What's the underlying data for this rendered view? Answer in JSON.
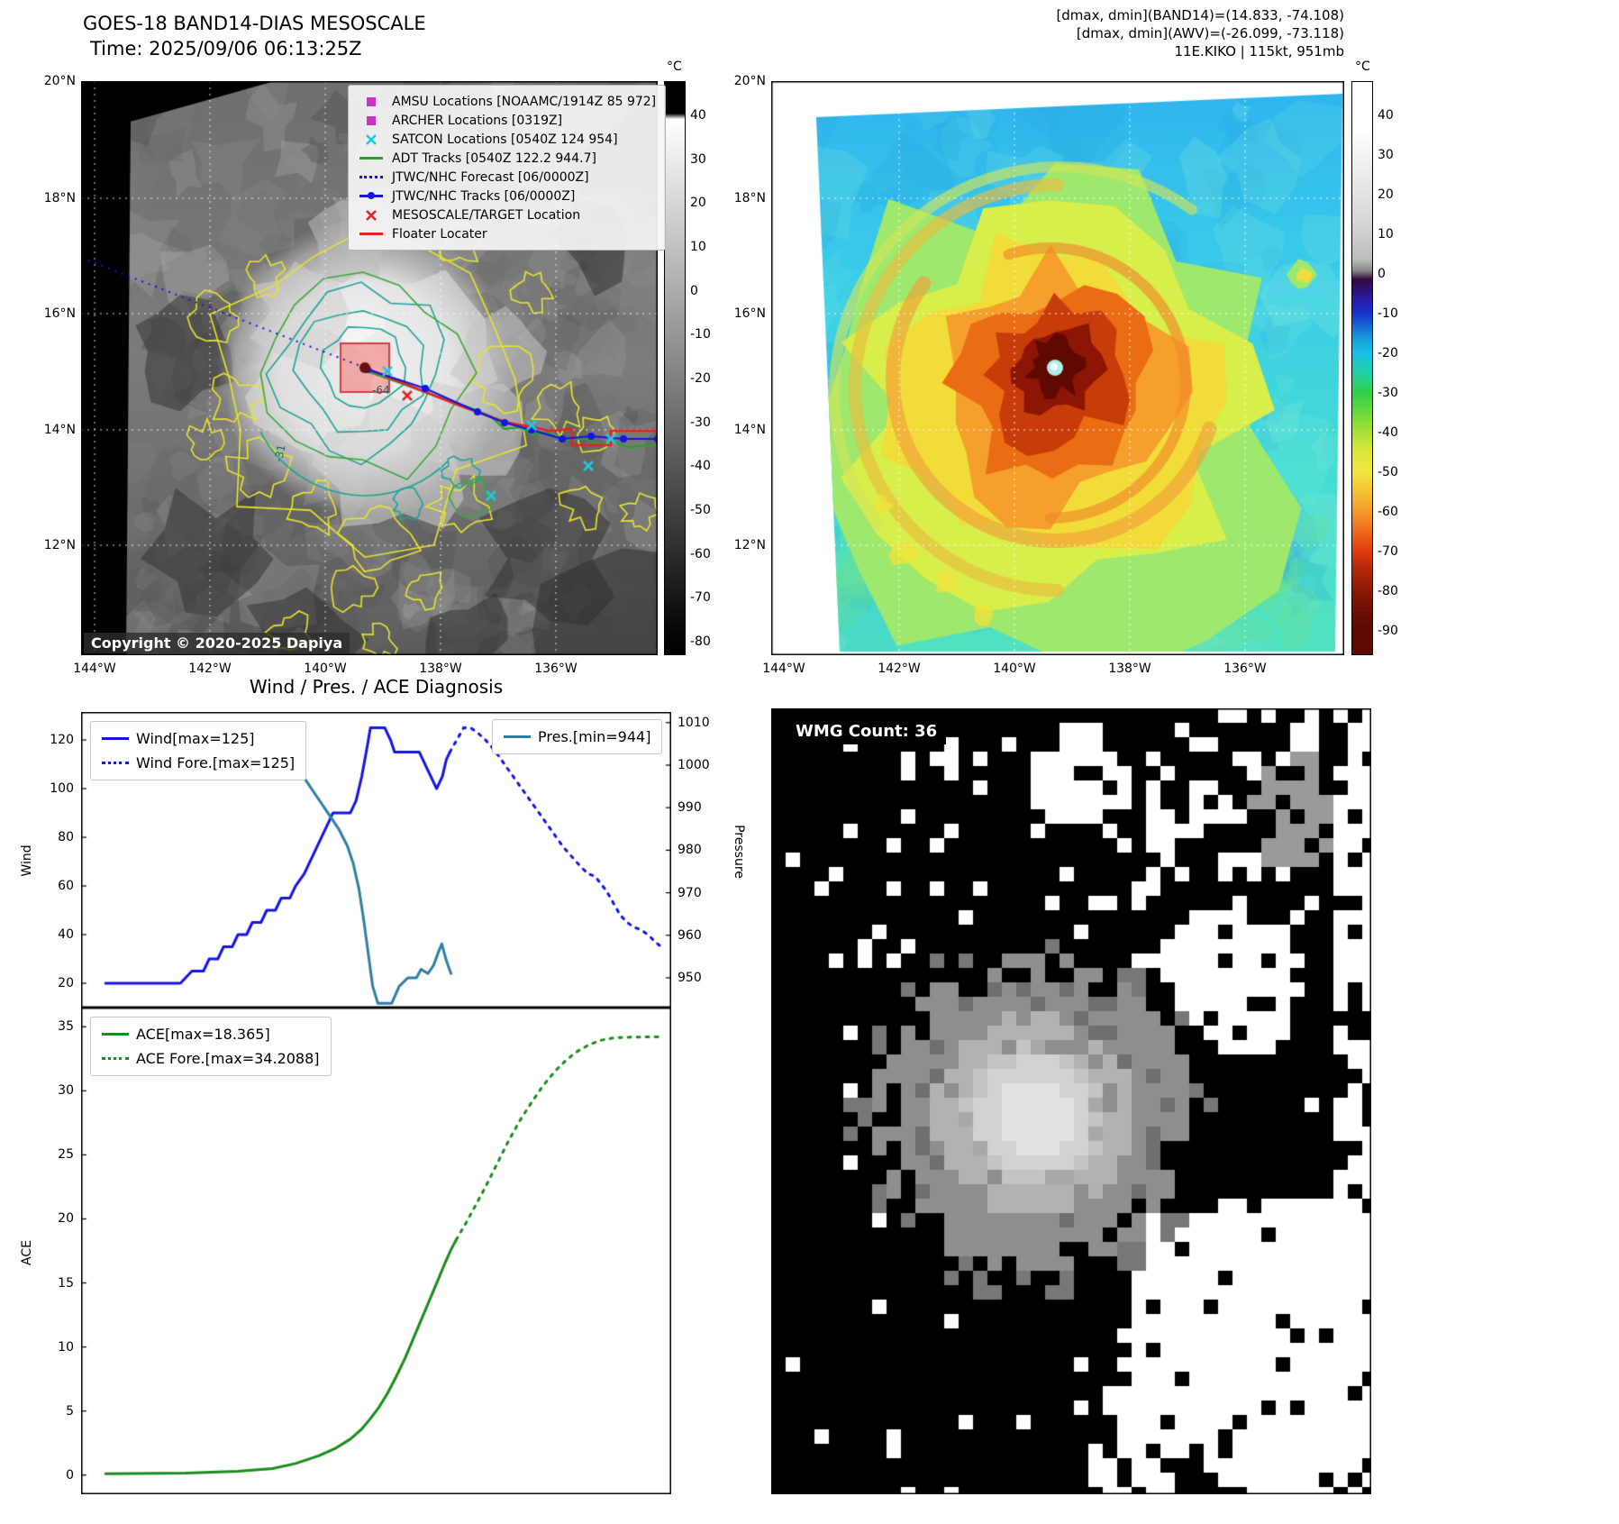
{
  "band14": {
    "title": "GOES-18 BAND14-DIAS MESOSCALE",
    "time": " Time: 2025/09/06 06:13:25Z",
    "copyright": "Copyright © 2020-2025 Dapiya",
    "colorbar_unit": "°C",
    "colorbar_ticks": [
      "40",
      "30",
      "20",
      "10",
      "0",
      "-10",
      "-20",
      "-30",
      "-40",
      "-50",
      "-60",
      "-70",
      "-80"
    ],
    "lat_ticks": [
      "20°N",
      "18°N",
      "16°N",
      "14°N",
      "12°N"
    ],
    "lon_ticks": [
      "144°W",
      "142°W",
      "140°W",
      "138°W",
      "136°W"
    ],
    "contour_labels": {
      "inner": "-64",
      "outer": "-31"
    },
    "legend": [
      {
        "label": "AMSU Locations [NOAAMC/1914Z 85 972]",
        "marker": "square",
        "color": "#c832c8"
      },
      {
        "label": "ARCHER Locations [0319Z]",
        "marker": "square",
        "color": "#c832c8"
      },
      {
        "label": "SATCON Locations [0540Z 124 954]",
        "marker": "x",
        "color": "#1ecbe1"
      },
      {
        "label": "ADT Tracks [0540Z 122.2 944.7]",
        "marker": "line",
        "color": "#2ca02c"
      },
      {
        "label": "JTWC/NHC Forecast [06/0000Z]",
        "marker": "dotted",
        "color": "#1414e6"
      },
      {
        "label": "JTWC/NHC Tracks [06/0000Z]",
        "marker": "line-dot",
        "color": "#1414e6"
      },
      {
        "label": "MESOSCALE/TARGET Location",
        "marker": "x",
        "color": "#e62222"
      },
      {
        "label": "Floater Locater",
        "marker": "line",
        "color": "#e62222"
      }
    ]
  },
  "awv": {
    "header": [
      "[dmax, dmin](BAND14)=(14.833, -74.108)",
      "[dmax, dmin](AWV)=(-26.099, -73.118)",
      "11E.KIKO | 115kt, 951mb"
    ],
    "colorbar_unit": "°C",
    "colorbar_ticks": [
      "40",
      "30",
      "20",
      "10",
      "0",
      "-10",
      "-20",
      "-30",
      "-40",
      "-50",
      "-60",
      "-70",
      "-80",
      "-90"
    ],
    "lat_ticks": [
      "20°N",
      "18°N",
      "16°N",
      "14°N",
      "12°N"
    ],
    "lon_ticks": [
      "144°W",
      "142°W",
      "140°W",
      "138°W",
      "136°W"
    ]
  },
  "diagnosis": {
    "title": "Wind / Pres. / ACE Diagnosis"
  },
  "wmg": {
    "label": "WMG Count: 36"
  },
  "chart_data": [
    {
      "type": "line",
      "title": "Wind / Pres. / ACE Diagnosis (upper panel)",
      "xlabel": "",
      "ylabel": "Wind",
      "y2label": "Pressure",
      "ylim": [
        10,
        131.5
      ],
      "y2lim": [
        943,
        1012.5
      ],
      "yticks": [
        20,
        40,
        60,
        80,
        100,
        120
      ],
      "y2ticks": [
        950,
        960,
        970,
        980,
        990,
        1000,
        1010
      ],
      "legend_position": "upper left / upper right",
      "grid": false,
      "series": [
        {
          "name": "Wind[max=125]",
          "style": "solid",
          "color": "#1414e6",
          "axis": "left",
          "points": [
            [
              0.03,
              20
            ],
            [
              0.16,
              20
            ],
            [
              0.18,
              25
            ],
            [
              0.2,
              25
            ],
            [
              0.21,
              30
            ],
            [
              0.225,
              30
            ],
            [
              0.235,
              35
            ],
            [
              0.25,
              35
            ],
            [
              0.26,
              40
            ],
            [
              0.275,
              40
            ],
            [
              0.285,
              45
            ],
            [
              0.3,
              45
            ],
            [
              0.31,
              50
            ],
            [
              0.325,
              50
            ],
            [
              0.335,
              55
            ],
            [
              0.35,
              55
            ],
            [
              0.36,
              60
            ],
            [
              0.375,
              65
            ],
            [
              0.385,
              70
            ],
            [
              0.395,
              75
            ],
            [
              0.405,
              80
            ],
            [
              0.415,
              85
            ],
            [
              0.425,
              90
            ],
            [
              0.455,
              90
            ],
            [
              0.465,
              95
            ],
            [
              0.475,
              105
            ],
            [
              0.485,
              118
            ],
            [
              0.49,
              125
            ],
            [
              0.515,
              125
            ],
            [
              0.525,
              120
            ],
            [
              0.532,
              115
            ],
            [
              0.575,
              115
            ],
            [
              0.585,
              110
            ],
            [
              0.595,
              105
            ],
            [
              0.605,
              100
            ],
            [
              0.615,
              105
            ],
            [
              0.622,
              112
            ],
            [
              0.628,
              115
            ]
          ]
        },
        {
          "name": "Wind Fore.[max=125]",
          "style": "dotted",
          "color": "#1414e6",
          "axis": "left",
          "points": [
            [
              0.628,
              115
            ],
            [
              0.64,
              120
            ],
            [
              0.652,
              125
            ],
            [
              0.664,
              125
            ],
            [
              0.676,
              123
            ],
            [
              0.69,
              120
            ],
            [
              0.705,
              116
            ],
            [
              0.72,
              111
            ],
            [
              0.735,
              106
            ],
            [
              0.75,
              101
            ],
            [
              0.765,
              96
            ],
            [
              0.78,
              91
            ],
            [
              0.795,
              86
            ],
            [
              0.81,
              81
            ],
            [
              0.825,
              76
            ],
            [
              0.84,
              72
            ],
            [
              0.855,
              68
            ],
            [
              0.868,
              65
            ],
            [
              0.88,
              64
            ],
            [
              0.89,
              61
            ],
            [
              0.9,
              58
            ],
            [
              0.912,
              53
            ],
            [
              0.924,
              48
            ],
            [
              0.936,
              45
            ],
            [
              0.948,
              43
            ],
            [
              0.96,
              42
            ],
            [
              0.972,
              40
            ],
            [
              0.985,
              37
            ],
            [
              0.995,
              35
            ]
          ]
        },
        {
          "name": "Pres.[min=944]",
          "style": "solid",
          "color": "#2e7f9e",
          "axis": "right",
          "points": [
            [
              0.05,
              1009
            ],
            [
              0.13,
              1008
            ],
            [
              0.21,
              1007
            ],
            [
              0.28,
              1005
            ],
            [
              0.32,
              1003
            ],
            [
              0.35,
              1000
            ],
            [
              0.375,
              997
            ],
            [
              0.395,
              993
            ],
            [
              0.415,
              989
            ],
            [
              0.435,
              985
            ],
            [
              0.45,
              981
            ],
            [
              0.46,
              977
            ],
            [
              0.47,
              971
            ],
            [
              0.478,
              964
            ],
            [
              0.486,
              956
            ],
            [
              0.494,
              948
            ],
            [
              0.503,
              944
            ],
            [
              0.527,
              944
            ],
            [
              0.54,
              948
            ],
            [
              0.555,
              950
            ],
            [
              0.57,
              950
            ],
            [
              0.578,
              952
            ],
            [
              0.59,
              951
            ],
            [
              0.6,
              953
            ],
            [
              0.608,
              956
            ],
            [
              0.614,
              958
            ],
            [
              0.622,
              954
            ],
            [
              0.63,
              951
            ]
          ]
        }
      ]
    },
    {
      "type": "line",
      "title": "ACE diagnosis (lower panel)",
      "xlabel": "",
      "ylabel": "ACE",
      "ylim": [
        -1.5,
        36.5
      ],
      "yticks": [
        0,
        5,
        10,
        15,
        20,
        25,
        30,
        35
      ],
      "legend_position": "upper left",
      "grid": false,
      "series": [
        {
          "name": "ACE[max=18.365]",
          "style": "solid",
          "color": "#1a8c1a",
          "axis": "left",
          "points": [
            [
              0.03,
              0.1
            ],
            [
              0.17,
              0.15
            ],
            [
              0.26,
              0.3
            ],
            [
              0.32,
              0.5
            ],
            [
              0.36,
              0.9
            ],
            [
              0.4,
              1.5
            ],
            [
              0.43,
              2.1
            ],
            [
              0.455,
              2.8
            ],
            [
              0.475,
              3.6
            ],
            [
              0.49,
              4.4
            ],
            [
              0.505,
              5.3
            ],
            [
              0.52,
              6.4
            ],
            [
              0.535,
              7.7
            ],
            [
              0.55,
              9.1
            ],
            [
              0.565,
              10.7
            ],
            [
              0.58,
              12.3
            ],
            [
              0.595,
              13.9
            ],
            [
              0.61,
              15.5
            ],
            [
              0.62,
              16.6
            ],
            [
              0.63,
              17.6
            ],
            [
              0.639,
              18.365
            ]
          ]
        },
        {
          "name": "ACE Fore.[max=34.2088]",
          "style": "dotted",
          "color": "#1a8c1a",
          "axis": "left",
          "points": [
            [
              0.639,
              18.365
            ],
            [
              0.655,
              19.6
            ],
            [
              0.672,
              21.0
            ],
            [
              0.69,
              22.5
            ],
            [
              0.71,
              24.3
            ],
            [
              0.73,
              26.1
            ],
            [
              0.75,
              27.7
            ],
            [
              0.77,
              29.1
            ],
            [
              0.79,
              30.4
            ],
            [
              0.81,
              31.5
            ],
            [
              0.83,
              32.4
            ],
            [
              0.85,
              33.1
            ],
            [
              0.87,
              33.6
            ],
            [
              0.89,
              33.95
            ],
            [
              0.915,
              34.15
            ],
            [
              0.95,
              34.2
            ],
            [
              0.995,
              34.21
            ]
          ]
        }
      ]
    }
  ]
}
